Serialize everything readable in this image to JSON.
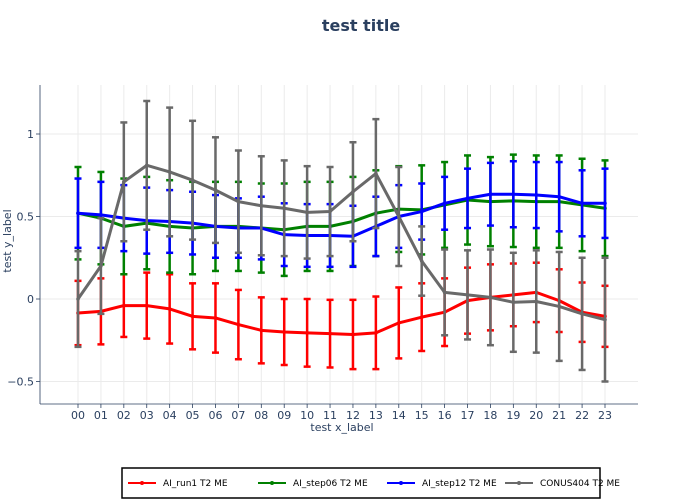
{
  "chart_data": {
    "type": "line",
    "title": "test title",
    "xlabel": "test x_label",
    "ylabel": "test y_label",
    "categories": [
      "00",
      "01",
      "02",
      "03",
      "04",
      "05",
      "06",
      "07",
      "08",
      "09",
      "10",
      "11",
      "12",
      "13",
      "14",
      "15",
      "16",
      "17",
      "18",
      "19",
      "20",
      "21",
      "22",
      "23"
    ],
    "yticks": [
      -0.5,
      0,
      0.5,
      1
    ],
    "ytick_labels": [
      "−0.5",
      "0",
      "0.5",
      "1"
    ],
    "ylim": [
      -0.63,
      1.3
    ],
    "grid": true,
    "legend_position": "bottom-center",
    "series": [
      {
        "name": "AI_run1 T2 ME",
        "color": "#ff0000",
        "values": [
          -0.085,
          -0.075,
          -0.04,
          -0.04,
          -0.06,
          -0.105,
          -0.115,
          -0.155,
          -0.19,
          -0.2,
          -0.205,
          -0.21,
          -0.215,
          -0.205,
          -0.145,
          -0.11,
          -0.08,
          -0.01,
          0.01,
          0.025,
          0.04,
          -0.01,
          -0.08,
          -0.105
        ],
        "err": [
          0.195,
          0.2,
          0.19,
          0.2,
          0.21,
          0.2,
          0.21,
          0.21,
          0.2,
          0.2,
          0.205,
          0.205,
          0.21,
          0.22,
          0.215,
          0.205,
          0.205,
          0.2,
          0.2,
          0.19,
          0.18,
          0.19,
          0.18,
          0.185
        ]
      },
      {
        "name": "AI_step06 T2 ME",
        "color": "#008000",
        "values": [
          0.52,
          0.49,
          0.44,
          0.46,
          0.44,
          0.43,
          0.44,
          0.44,
          0.43,
          0.42,
          0.44,
          0.44,
          0.47,
          0.52,
          0.545,
          0.54,
          0.57,
          0.6,
          0.59,
          0.595,
          0.59,
          0.59,
          0.57,
          0.55
        ],
        "err": [
          0.28,
          0.28,
          0.29,
          0.28,
          0.28,
          0.28,
          0.27,
          0.27,
          0.27,
          0.28,
          0.27,
          0.27,
          0.27,
          0.26,
          0.26,
          0.27,
          0.26,
          0.27,
          0.27,
          0.28,
          0.28,
          0.28,
          0.28,
          0.29
        ]
      },
      {
        "name": "AI_step12 T2 ME",
        "color": "#0000ff",
        "values": [
          0.52,
          0.51,
          0.49,
          0.475,
          0.47,
          0.46,
          0.44,
          0.43,
          0.43,
          0.39,
          0.385,
          0.385,
          0.38,
          0.44,
          0.5,
          0.53,
          0.58,
          0.61,
          0.635,
          0.635,
          0.63,
          0.62,
          0.58,
          0.58
        ],
        "err": [
          0.21,
          0.2,
          0.2,
          0.2,
          0.19,
          0.19,
          0.19,
          0.18,
          0.19,
          0.19,
          0.19,
          0.19,
          0.185,
          0.18,
          0.19,
          0.17,
          0.16,
          0.18,
          0.19,
          0.2,
          0.2,
          0.21,
          0.2,
          0.21
        ]
      },
      {
        "name": "CONUS404 T2 ME",
        "color": "#696969",
        "values": [
          0.0,
          0.2,
          0.71,
          0.81,
          0.77,
          0.72,
          0.66,
          0.59,
          0.565,
          0.55,
          0.525,
          0.53,
          0.65,
          0.76,
          0.5,
          0.23,
          0.04,
          0.025,
          0.01,
          -0.02,
          -0.015,
          -0.045,
          -0.09,
          -0.125
        ],
        "err": [
          0.29,
          0.29,
          0.36,
          0.39,
          0.39,
          0.36,
          0.32,
          0.31,
          0.3,
          0.29,
          0.28,
          0.27,
          0.3,
          0.33,
          0.3,
          0.21,
          0.26,
          0.27,
          0.29,
          0.3,
          0.31,
          0.33,
          0.34,
          0.375
        ]
      }
    ]
  }
}
